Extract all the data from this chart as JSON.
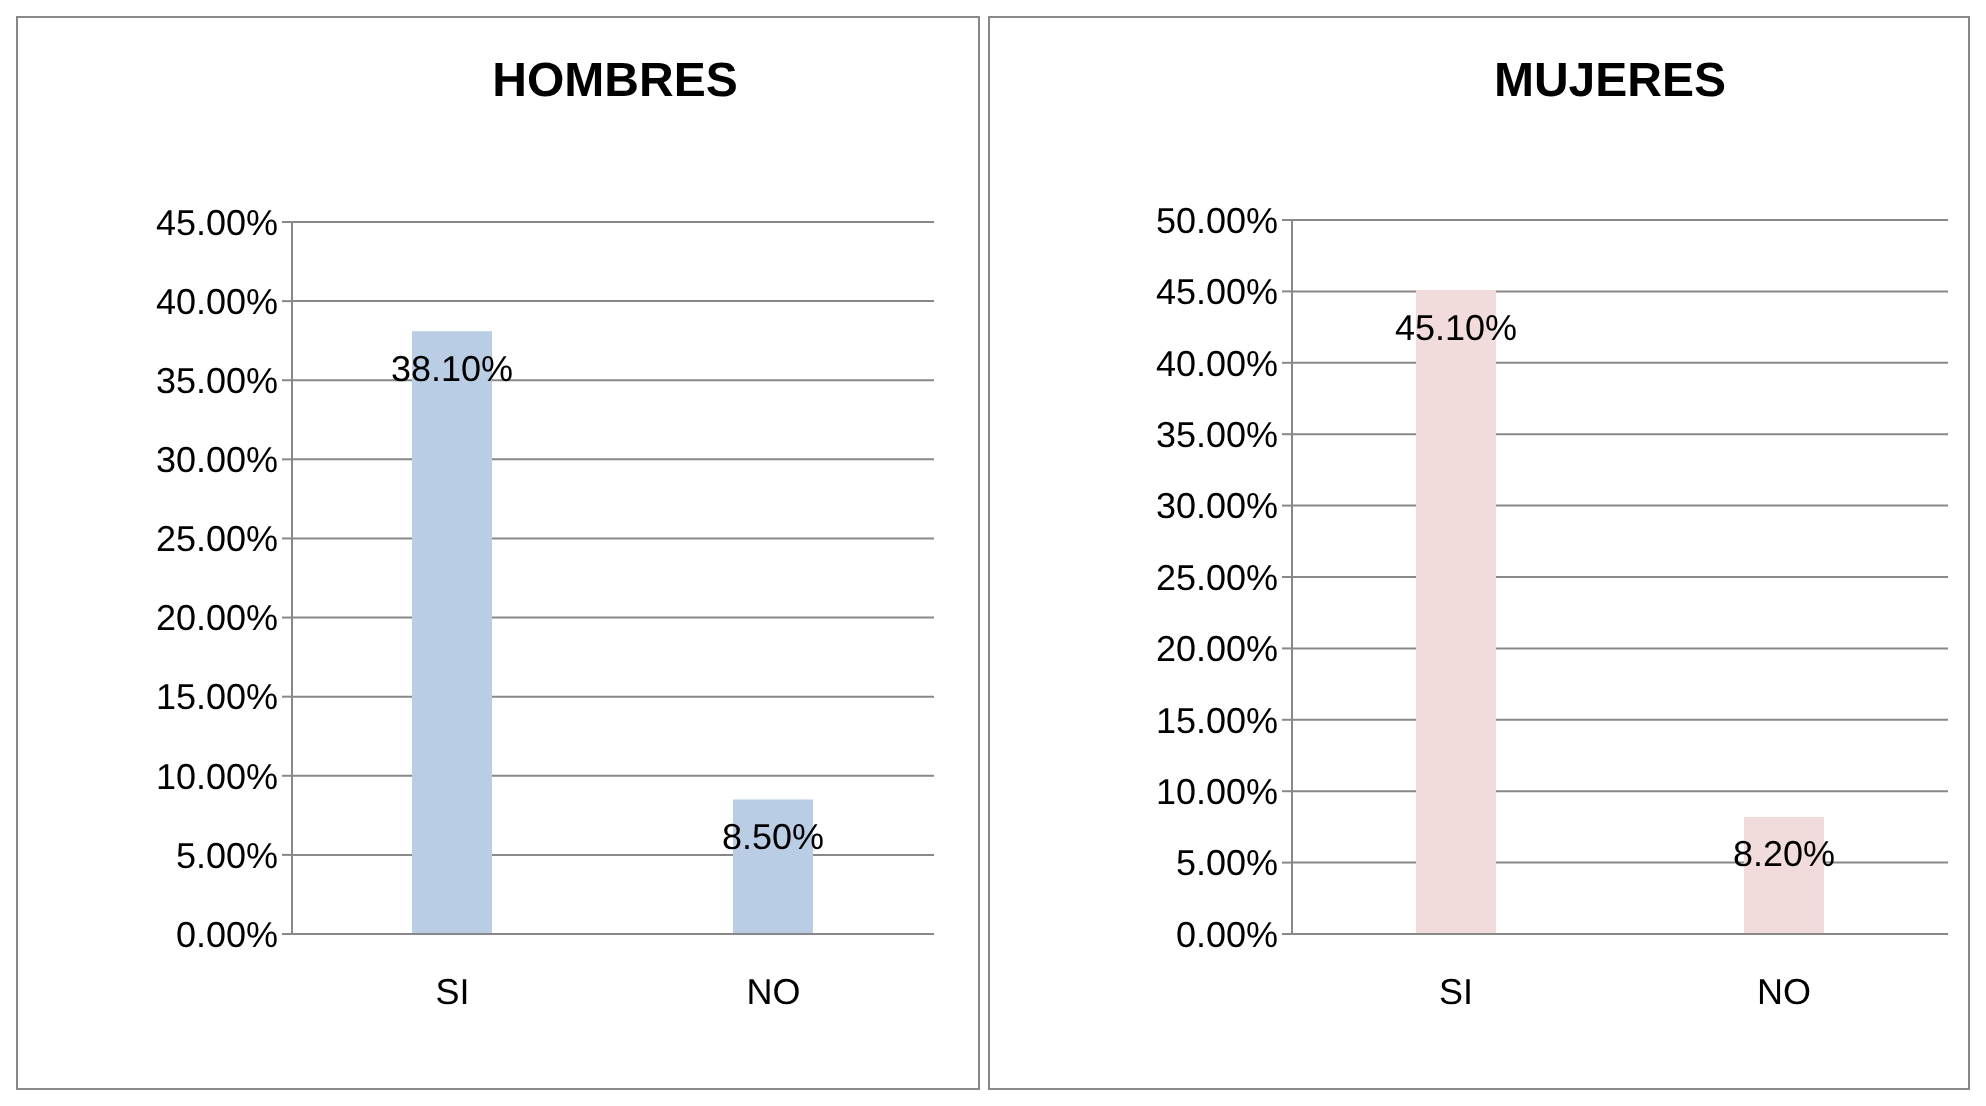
{
  "chart_data": [
    {
      "type": "bar",
      "title": "HOMBRES",
      "categories": [
        "SI",
        "NO"
      ],
      "values": [
        38.1,
        8.5
      ],
      "color": "#b9cde5",
      "value_labels": [
        "38.10%",
        "8.50%"
      ],
      "ylim": [
        0,
        45
      ],
      "yticks": [
        {
          "value": 0,
          "label": "0.00%"
        },
        {
          "value": 5,
          "label": "5.00%"
        },
        {
          "value": 10,
          "label": "10.00%"
        },
        {
          "value": 15,
          "label": "15.00%"
        },
        {
          "value": 20,
          "label": "20.00%"
        },
        {
          "value": 25,
          "label": "25.00%"
        },
        {
          "value": 30,
          "label": "30.00%"
        },
        {
          "value": 35,
          "label": "35.00%"
        },
        {
          "value": 40,
          "label": "40.00%"
        },
        {
          "value": 45,
          "label": "45.00%"
        }
      ],
      "grid": "y"
    },
    {
      "type": "bar",
      "title": "MUJERES",
      "categories": [
        "SI",
        "NO"
      ],
      "values": [
        45.1,
        8.2
      ],
      "color": "#f2dcdb",
      "value_labels": [
        "45.10%",
        "8.20%"
      ],
      "ylim": [
        0,
        50
      ],
      "yticks": [
        {
          "value": 0,
          "label": "0.00%"
        },
        {
          "value": 5,
          "label": "5.00%"
        },
        {
          "value": 10,
          "label": "10.00%"
        },
        {
          "value": 15,
          "label": "15.00%"
        },
        {
          "value": 20,
          "label": "20.00%"
        },
        {
          "value": 25,
          "label": "25.00%"
        },
        {
          "value": 30,
          "label": "30.00%"
        },
        {
          "value": 35,
          "label": "35.00%"
        },
        {
          "value": 40,
          "label": "40.00%"
        },
        {
          "value": 45,
          "label": "45.00%"
        },
        {
          "value": 50,
          "label": "50.00%"
        }
      ],
      "grid": "y"
    }
  ]
}
